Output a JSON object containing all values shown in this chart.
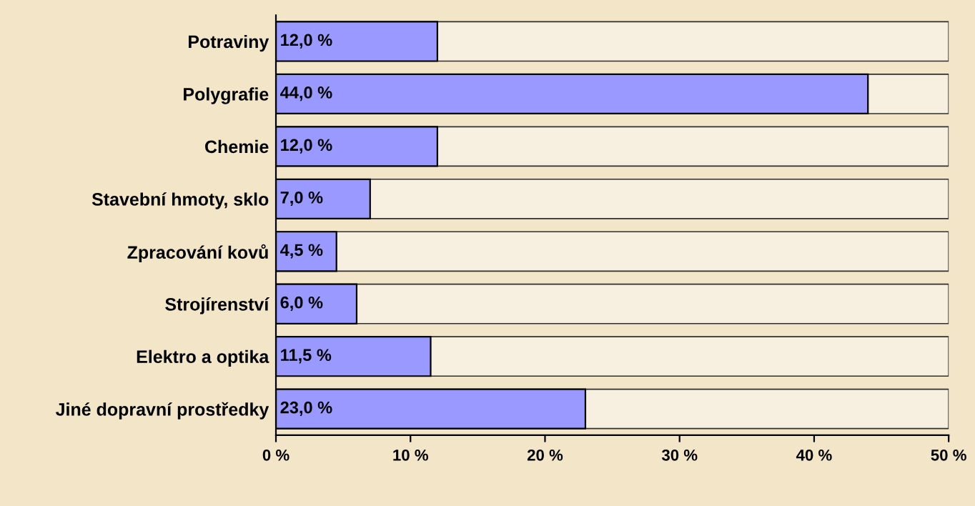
{
  "chart_data": {
    "type": "bar",
    "orientation": "horizontal",
    "categories": [
      "Potraviny",
      "Polygrafie",
      "Chemie",
      "Stavební hmoty, sklo",
      "Zpracování kovů",
      "Strojírenství",
      "Elektro a optika",
      "Jiné dopravní prostředky"
    ],
    "values": [
      12.0,
      44.0,
      12.0,
      7.0,
      4.5,
      6.0,
      11.5,
      23.0
    ],
    "value_labels": [
      "12,0 %",
      "44,0 %",
      "12,0 %",
      "7,0 %",
      "4,5 %",
      "6,0 %",
      "11,5 %",
      "23,0 %"
    ],
    "color": "#9999ff",
    "xlim": [
      0,
      50
    ],
    "xticks": [
      {
        "value": 0,
        "label": "0 %"
      },
      {
        "value": 10,
        "label": "10 %"
      },
      {
        "value": 20,
        "label": "20 %"
      },
      {
        "value": 30,
        "label": "30 %"
      },
      {
        "value": 40,
        "label": "40 %"
      },
      {
        "value": 50,
        "label": "50 %"
      }
    ],
    "grid": false
  }
}
